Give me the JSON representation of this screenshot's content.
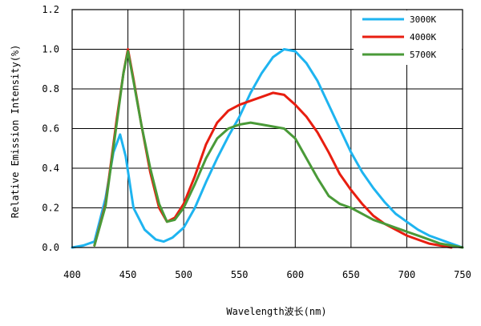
{
  "chart_data": {
    "type": "line",
    "title": "",
    "xlabel": "Wavelength波长(nm)",
    "ylabel": "Relative Emission Intensity(%)",
    "xlim": [
      400,
      750
    ],
    "ylim": [
      0,
      1.2
    ],
    "xticks": [
      400,
      450,
      500,
      550,
      600,
      650,
      700,
      750
    ],
    "yticks": [
      0.0,
      0.2,
      0.4,
      0.6,
      0.8,
      1.0,
      1.2
    ],
    "ytick_labels": [
      "0.0",
      "0.2",
      "0.4",
      "0.6",
      "0.8",
      "1.0",
      "1.2"
    ],
    "grid": true,
    "legend_position": "top-right",
    "series": [
      {
        "name": "3000K",
        "color": "#1EB4F0",
        "points": [
          [
            400,
            0.0
          ],
          [
            410,
            0.01
          ],
          [
            420,
            0.03
          ],
          [
            430,
            0.25
          ],
          [
            437,
            0.48
          ],
          [
            443,
            0.57
          ],
          [
            448,
            0.46
          ],
          [
            455,
            0.2
          ],
          [
            465,
            0.09
          ],
          [
            475,
            0.04
          ],
          [
            482,
            0.03
          ],
          [
            490,
            0.05
          ],
          [
            500,
            0.1
          ],
          [
            510,
            0.2
          ],
          [
            520,
            0.33
          ],
          [
            530,
            0.45
          ],
          [
            540,
            0.56
          ],
          [
            550,
            0.66
          ],
          [
            560,
            0.78
          ],
          [
            570,
            0.88
          ],
          [
            580,
            0.96
          ],
          [
            590,
            1.0
          ],
          [
            600,
            0.99
          ],
          [
            610,
            0.93
          ],
          [
            620,
            0.84
          ],
          [
            630,
            0.72
          ],
          [
            640,
            0.6
          ],
          [
            650,
            0.48
          ],
          [
            660,
            0.38
          ],
          [
            670,
            0.3
          ],
          [
            680,
            0.23
          ],
          [
            690,
            0.17
          ],
          [
            700,
            0.13
          ],
          [
            710,
            0.09
          ],
          [
            720,
            0.06
          ],
          [
            730,
            0.04
          ],
          [
            740,
            0.02
          ],
          [
            750,
            0.0
          ]
        ]
      },
      {
        "name": "4000K",
        "color": "#E81E10",
        "points": [
          [
            420,
            0.01
          ],
          [
            430,
            0.22
          ],
          [
            440,
            0.65
          ],
          [
            446,
            0.88
          ],
          [
            450,
            1.0
          ],
          [
            455,
            0.85
          ],
          [
            462,
            0.62
          ],
          [
            470,
            0.38
          ],
          [
            478,
            0.2
          ],
          [
            485,
            0.13
          ],
          [
            492,
            0.15
          ],
          [
            500,
            0.22
          ],
          [
            510,
            0.36
          ],
          [
            520,
            0.52
          ],
          [
            530,
            0.63
          ],
          [
            540,
            0.69
          ],
          [
            550,
            0.72
          ],
          [
            560,
            0.74
          ],
          [
            570,
            0.76
          ],
          [
            580,
            0.78
          ],
          [
            590,
            0.77
          ],
          [
            600,
            0.72
          ],
          [
            610,
            0.66
          ],
          [
            620,
            0.58
          ],
          [
            630,
            0.48
          ],
          [
            640,
            0.37
          ],
          [
            650,
            0.29
          ],
          [
            660,
            0.22
          ],
          [
            670,
            0.16
          ],
          [
            680,
            0.12
          ],
          [
            690,
            0.09
          ],
          [
            700,
            0.06
          ],
          [
            710,
            0.04
          ],
          [
            720,
            0.02
          ],
          [
            730,
            0.01
          ],
          [
            740,
            0.0
          ]
        ]
      },
      {
        "name": "5700K",
        "color": "#4A9A38",
        "points": [
          [
            420,
            0.01
          ],
          [
            430,
            0.21
          ],
          [
            440,
            0.63
          ],
          [
            446,
            0.88
          ],
          [
            450,
            0.99
          ],
          [
            455,
            0.84
          ],
          [
            462,
            0.62
          ],
          [
            470,
            0.4
          ],
          [
            478,
            0.22
          ],
          [
            485,
            0.13
          ],
          [
            492,
            0.14
          ],
          [
            500,
            0.2
          ],
          [
            510,
            0.32
          ],
          [
            520,
            0.45
          ],
          [
            530,
            0.55
          ],
          [
            540,
            0.6
          ],
          [
            550,
            0.62
          ],
          [
            560,
            0.63
          ],
          [
            570,
            0.62
          ],
          [
            580,
            0.61
          ],
          [
            590,
            0.6
          ],
          [
            600,
            0.55
          ],
          [
            610,
            0.45
          ],
          [
            620,
            0.35
          ],
          [
            630,
            0.26
          ],
          [
            640,
            0.22
          ],
          [
            650,
            0.2
          ],
          [
            660,
            0.17
          ],
          [
            670,
            0.14
          ],
          [
            680,
            0.12
          ],
          [
            690,
            0.1
          ],
          [
            700,
            0.08
          ],
          [
            710,
            0.06
          ],
          [
            720,
            0.04
          ],
          [
            730,
            0.02
          ],
          [
            740,
            0.01
          ],
          [
            750,
            0.0
          ]
        ]
      }
    ]
  }
}
